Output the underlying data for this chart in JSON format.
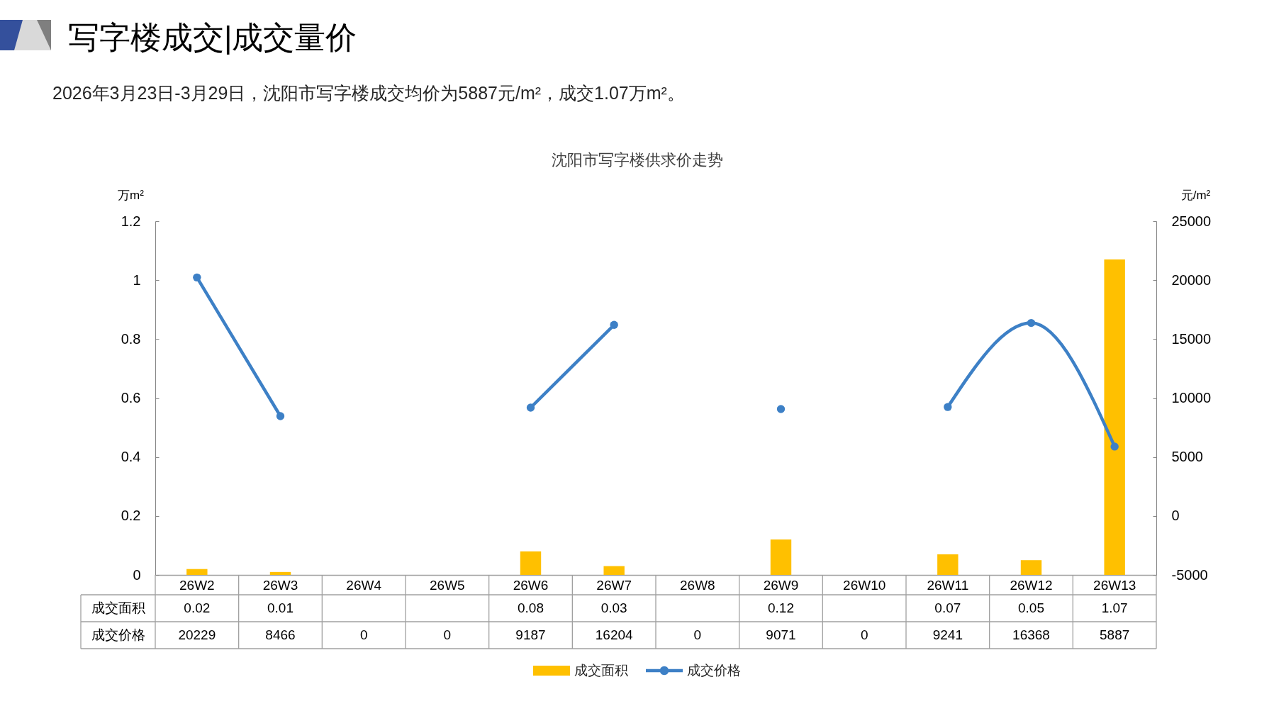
{
  "chart_data": {
    "type": "bar",
    "title": "沈阳市写字楼供求价走势",
    "subtitle": "2026年3月23日-3月29日，沈阳市写字楼成交均价为5887元/m²，成交1.07万m²。",
    "annotations": [
      "写字楼成交|成交量价"
    ],
    "ylabel": "万m²",
    "y2label": "元/m²",
    "categories": [
      "26W2",
      "26W3",
      "26W4",
      "26W5",
      "26W6",
      "26W7",
      "26W8",
      "26W9",
      "26W10",
      "26W11",
      "26W12",
      "26W13"
    ],
    "series": [
      {
        "name": "成交面积",
        "color": "#ffc000",
        "values": [
          0.02,
          0.01,
          null,
          null,
          0.08,
          0.03,
          null,
          0.12,
          null,
          0.07,
          0.05,
          1.07
        ],
        "value_labels": [
          "0.02",
          "0.01",
          null,
          null,
          "0.08",
          "0.03",
          null,
          "0.12",
          null,
          "0.07",
          "0.05",
          "1.07"
        ]
      },
      {
        "name": "成交价格",
        "type": "line",
        "axis": "y2",
        "color": "#3d80c6",
        "values": [
          20229,
          8466,
          null,
          null,
          9187,
          16204,
          null,
          9071,
          null,
          9241,
          16368,
          5887
        ],
        "value_labels": [
          "20229",
          "8466",
          "0",
          "0",
          "9187",
          "16204",
          "0",
          "9071",
          "0",
          "9241",
          "16368",
          "5887"
        ]
      }
    ],
    "ylim": [
      0,
      1.2
    ],
    "yticks": [
      0,
      0.2,
      0.4,
      0.6,
      0.8,
      1,
      1.2
    ],
    "y2lim": [
      -5000,
      25000
    ],
    "y2ticks": [
      -5000,
      0,
      5000,
      10000,
      15000,
      20000,
      25000
    ],
    "marker": "circle",
    "legend": "bottom"
  }
}
